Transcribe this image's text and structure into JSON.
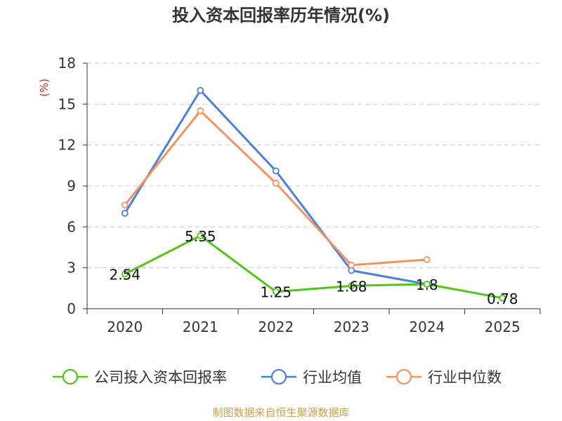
{
  "chart_data": {
    "type": "line",
    "title": "投入资本回报率历年情况(%)",
    "ylabel": "(%)",
    "xlabel": "",
    "ylim": [
      0,
      18
    ],
    "yticks": [
      0,
      3,
      6,
      9,
      12,
      15,
      18
    ],
    "categories": [
      "2020",
      "2021",
      "2022",
      "2023",
      "2024",
      "2025"
    ],
    "series": [
      {
        "name": "公司投入资本回报率",
        "color": "#52c41a",
        "values": [
          2.54,
          5.35,
          1.25,
          1.68,
          1.8,
          0.78
        ],
        "labels": [
          "2.54",
          "5.35",
          "1.25",
          "1.68",
          "1.8",
          "0.78"
        ]
      },
      {
        "name": "行业均值",
        "color": "#4a7fdc",
        "values": [
          7.0,
          16.0,
          10.1,
          2.8,
          1.8,
          null
        ]
      },
      {
        "name": "行业中位数",
        "color": "#f5925e",
        "values": [
          7.6,
          14.5,
          9.2,
          3.2,
          3.6,
          null
        ]
      }
    ],
    "grid": true,
    "legend_position": "bottom"
  },
  "footer": {
    "source": "制图数据来自恒生聚源数据库"
  }
}
